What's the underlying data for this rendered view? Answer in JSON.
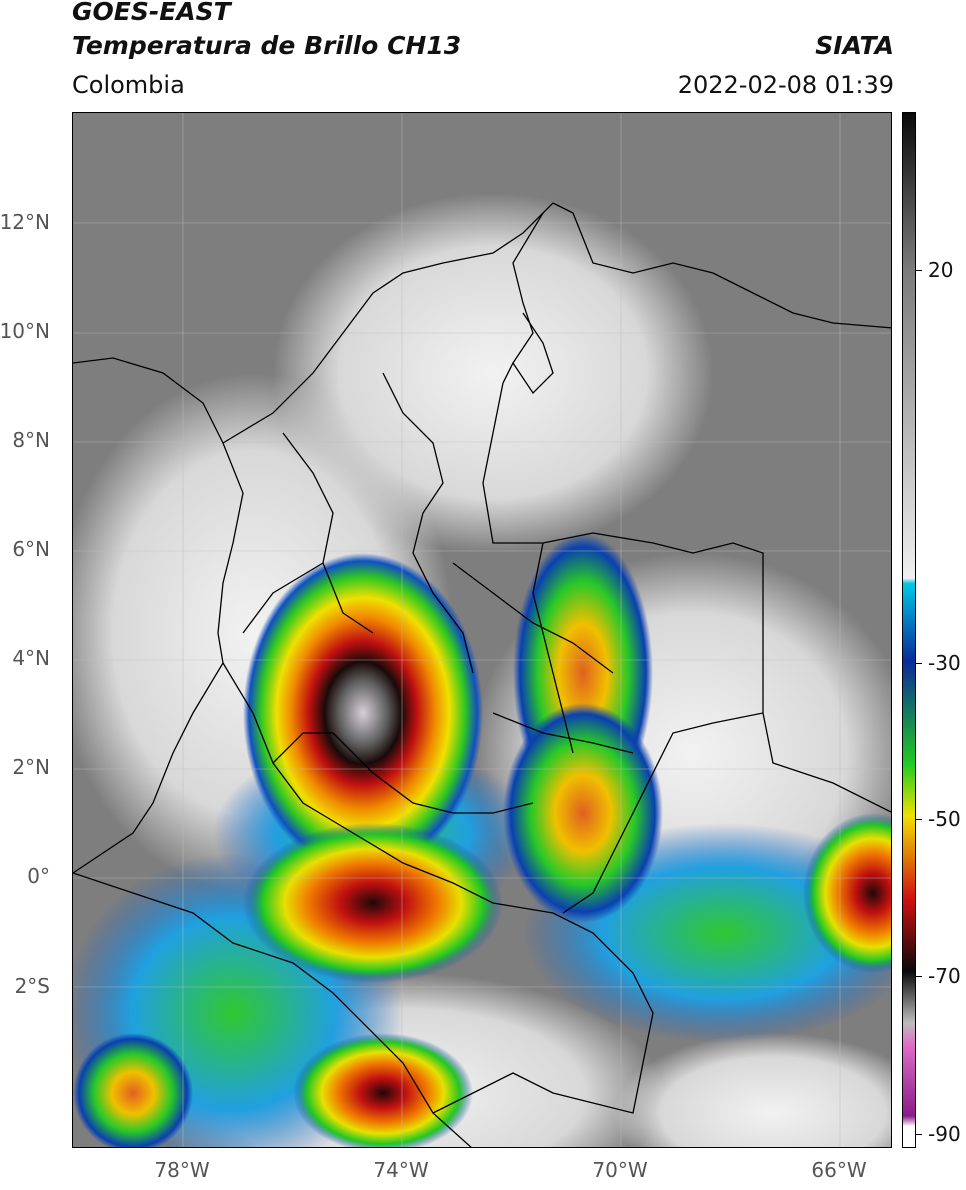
{
  "header": {
    "title_line1": "GOES-EAST",
    "title_line2": "Temperatura de Brillo CH13",
    "organization": "SIATA",
    "region": "Colombia",
    "timestamp": "2022-02-08 01:39"
  },
  "map": {
    "lat_labels": [
      "12°N",
      "10°N",
      "8°N",
      "6°N",
      "4°N",
      "2°N",
      "0°",
      "2°S"
    ],
    "lon_labels": [
      "78°W",
      "74°W",
      "70°W",
      "66°W"
    ]
  },
  "colorbar": {
    "labels": [
      "20",
      "-30",
      "-50",
      "-70",
      "-90"
    ],
    "colors": {
      "warm_gray": "#7a7a7a",
      "light": "#f0f0f0",
      "cyan": "#00c8e6",
      "blue": "#0a2a9a",
      "green": "#22cc22",
      "yellow": "#f0e000",
      "red": "#d01010",
      "black": "#0a0a0a",
      "pink": "#e070c8",
      "purple": "#8a1a8a"
    }
  }
}
